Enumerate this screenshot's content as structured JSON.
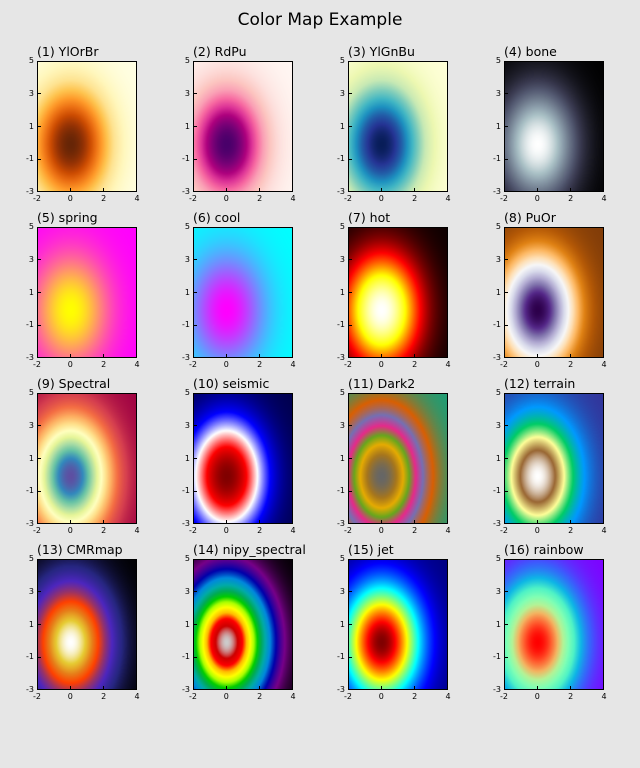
{
  "figure": {
    "title": "Color Map Example"
  },
  "chart_data": {
    "type": "heatmap",
    "function": "2D Gaussian centered near (0, 0)",
    "xlim": [
      -2,
      4
    ],
    "ylim": [
      -3,
      5
    ],
    "xticks": [
      "-2",
      "0",
      "2",
      "4"
    ],
    "yticks": [
      "-3",
      "-1",
      "1",
      "3",
      "5"
    ],
    "panels": [
      {
        "title": "(1) YlOrBr",
        "cmap": "YlOrBr"
      },
      {
        "title": "(2) RdPu",
        "cmap": "RdPu"
      },
      {
        "title": "(3) YlGnBu",
        "cmap": "YlGnBu"
      },
      {
        "title": "(4) bone",
        "cmap": "bone"
      },
      {
        "title": "(5) spring",
        "cmap": "spring"
      },
      {
        "title": "(6) cool",
        "cmap": "cool"
      },
      {
        "title": "(7) hot",
        "cmap": "hot"
      },
      {
        "title": "(8) PuOr",
        "cmap": "PuOr"
      },
      {
        "title": "(9) Spectral",
        "cmap": "Spectral"
      },
      {
        "title": "(10) seismic",
        "cmap": "seismic"
      },
      {
        "title": "(11) Dark2",
        "cmap": "Dark2"
      },
      {
        "title": "(12) terrain",
        "cmap": "terrain"
      },
      {
        "title": "(13) CMRmap",
        "cmap": "CMRmap"
      },
      {
        "title": "(14) nipy_spectral",
        "cmap": "nipy_spectral"
      },
      {
        "title": "(15) jet",
        "cmap": "jet"
      },
      {
        "title": "(16) rainbow",
        "cmap": "rainbow"
      }
    ]
  },
  "colormaps": {
    "YlOrBr": [
      "#ffffe5",
      "#fff7bc",
      "#fee391",
      "#fec44f",
      "#fe9929",
      "#ec7014",
      "#cc4c02",
      "#993404",
      "#662506"
    ],
    "RdPu": [
      "#fff7f3",
      "#fde0dd",
      "#fcc5c0",
      "#fa9fb5",
      "#f768a1",
      "#dd3497",
      "#ae017e",
      "#7a0177",
      "#49006a"
    ],
    "YlGnBu": [
      "#ffffd9",
      "#edf8b1",
      "#c7e9b4",
      "#7fcdbb",
      "#41b6c4",
      "#1d91c0",
      "#225ea8",
      "#253494",
      "#081d58"
    ],
    "bone": [
      "#000000",
      "#1c1c27",
      "#38384e",
      "#545a72",
      "#707c8e",
      "#8c9eab",
      "#aac1c6",
      "#d5e0e2",
      "#ffffff"
    ],
    "spring": [
      "#ff00ff",
      "#ffff00"
    ],
    "cool": [
      "#00ffff",
      "#ff00ff"
    ],
    "hot": [
      "#0b0000",
      "#800000",
      "#ff0000",
      "#ff8000",
      "#ffff00",
      "#ffff80",
      "#ffffff"
    ],
    "PuOr": [
      "#7f3b08",
      "#b35806",
      "#e08214",
      "#fdb863",
      "#fee0b6",
      "#f7f7f7",
      "#d8daeb",
      "#b2abd2",
      "#8073ac",
      "#542788",
      "#2d004b"
    ],
    "Spectral": [
      "#9e0142",
      "#d53e4f",
      "#f46d43",
      "#fdae61",
      "#fee08b",
      "#ffffbf",
      "#e6f598",
      "#abdda4",
      "#66c2a5",
      "#3288bd",
      "#5e4fa2"
    ],
    "seismic": [
      "#00004c",
      "#0000ff",
      "#ffffff",
      "#ff0000",
      "#800000"
    ],
    "Dark2": [
      "#1b9e77",
      "#d95f02",
      "#7570b3",
      "#e7298a",
      "#66a61e",
      "#e6ab02",
      "#a6761d",
      "#666666"
    ],
    "terrain": [
      "#333399",
      "#0099ff",
      "#00cc66",
      "#ffff99",
      "#996633",
      "#ffffff"
    ],
    "CMRmap": [
      "#000000",
      "#262680",
      "#4d26bf",
      "#993366",
      "#ff4000",
      "#e6801a",
      "#e6cc33",
      "#ffffff"
    ],
    "nipy_spectral": [
      "#000000",
      "#770088",
      "#0000aa",
      "#0088dd",
      "#00aaaa",
      "#00aa55",
      "#00cc00",
      "#aaff00",
      "#ffff00",
      "#ffbb00",
      "#ff0000",
      "#cc0000",
      "#cccccc"
    ],
    "jet": [
      "#00007f",
      "#0000ff",
      "#007fff",
      "#00ffff",
      "#7fff7f",
      "#ffff00",
      "#ff7f00",
      "#ff0000",
      "#7f0000"
    ],
    "rainbow": [
      "#8000ff",
      "#3a5ffc",
      "#0db5e6",
      "#4ff3c6",
      "#80ffb4",
      "#b4f396",
      "#f3b562",
      "#ff5f30",
      "#ff0000"
    ]
  }
}
